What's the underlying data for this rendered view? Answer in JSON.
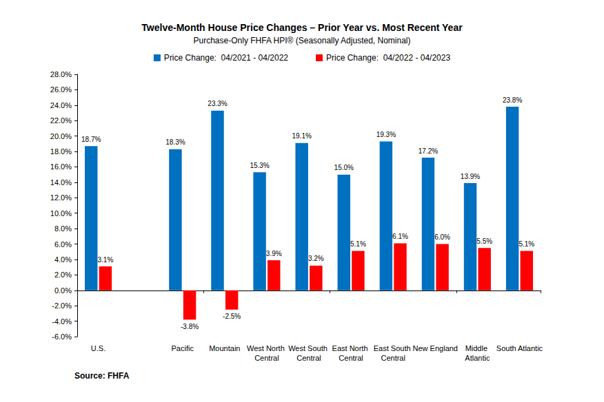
{
  "chart_data": {
    "type": "bar",
    "title": "Twelve-Month House Price Changes – Prior Year vs. Most Recent Year",
    "subtitle": "Purchase-Only FHFA HPI® (Seasonally Adjusted, Nominal)",
    "annotations": [
      "Source: FHFA"
    ],
    "categories": [
      "U.S.",
      null,
      "Pacific",
      "Mountain",
      "West North Central",
      "West South Central",
      "East North Central",
      "East South Central",
      "New England",
      "Middle Atlantic",
      "South Atlantic"
    ],
    "series": [
      {
        "name": "Price Change:  04/2021 - 04/2022",
        "color": "#0070C0",
        "values": [
          18.7,
          null,
          18.3,
          23.3,
          15.3,
          19.1,
          15.0,
          19.3,
          17.2,
          13.9,
          23.8
        ],
        "value_labels": [
          "18.7%",
          null,
          "18.3%",
          "23.3%",
          "15.3%",
          "19.1%",
          "15.0%",
          "19.3%",
          "17.2%",
          "13.9%",
          "23.8%"
        ]
      },
      {
        "name": "Price Change:  04/2022 - 04/2023",
        "color": "#FF0000",
        "values": [
          3.1,
          null,
          -3.8,
          -2.5,
          3.9,
          3.2,
          5.1,
          6.1,
          6.0,
          5.5,
          5.1
        ],
        "value_labels": [
          "3.1%",
          null,
          "-3.8%",
          "-2.5%",
          "3.9%",
          "3.2%",
          "5.1%",
          "6.1%",
          "6.0%",
          "5.5%",
          "5.1%"
        ]
      }
    ],
    "ylim": [
      -6,
      28
    ],
    "yticks": [
      {
        "value": -6,
        "label": "-6.0%"
      },
      {
        "value": -4,
        "label": "-4.0%"
      },
      {
        "value": -2,
        "label": "-2.0%"
      },
      {
        "value": 0,
        "label": "0.0%"
      },
      {
        "value": 2,
        "label": "2.0%"
      },
      {
        "value": 4,
        "label": "4.0%"
      },
      {
        "value": 6,
        "label": "6.0%"
      },
      {
        "value": 8,
        "label": "8.0%"
      },
      {
        "value": 10,
        "label": "10.0%"
      },
      {
        "value": 12,
        "label": "12.0%"
      },
      {
        "value": 14,
        "label": "14.0%"
      },
      {
        "value": 16,
        "label": "16.0%"
      },
      {
        "value": 18,
        "label": "18.0%"
      },
      {
        "value": 20,
        "label": "20.0%"
      },
      {
        "value": 22,
        "label": "22.0%"
      },
      {
        "value": 24,
        "label": "24.0%"
      },
      {
        "value": 26,
        "label": "26.0%"
      },
      {
        "value": 28,
        "label": "28.0%"
      }
    ],
    "grid": false,
    "legend": "top",
    "data_labels": true
  }
}
